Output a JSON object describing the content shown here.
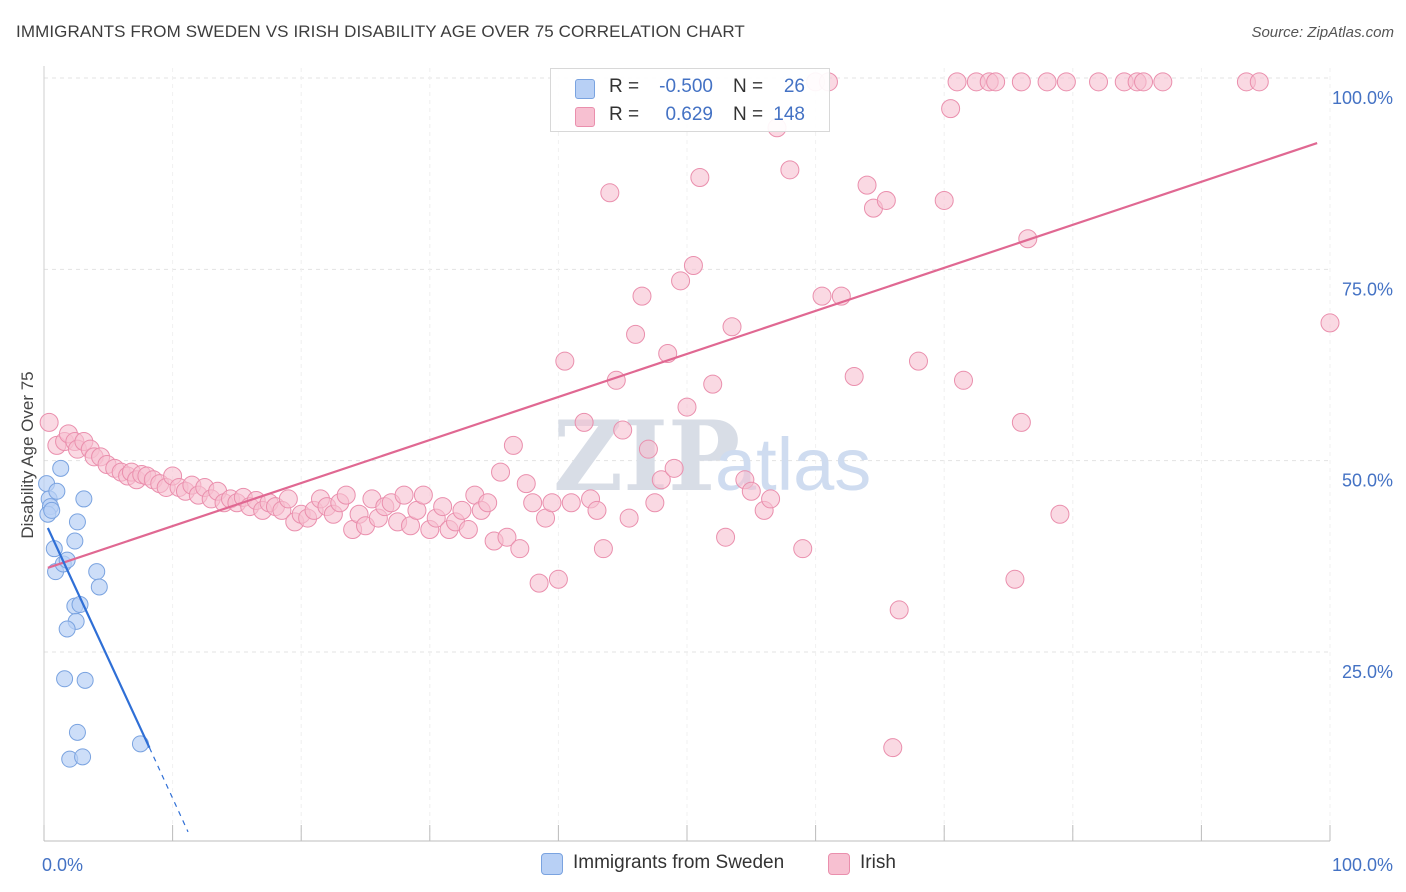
{
  "title": "IMMIGRANTS FROM SWEDEN VS IRISH DISABILITY AGE OVER 75 CORRELATION CHART",
  "source": "Source: ZipAtlas.com",
  "watermark": {
    "zip": "ZIP",
    "atlas": "atlas"
  },
  "colors": {
    "sweden_fill": "#b8d0f5",
    "sweden_stroke": "#7aa3e0",
    "sweden_line": "#2f6fd6",
    "irish_fill": "#f7c0d1",
    "irish_stroke": "#ea8fad",
    "irish_line": "#e06892",
    "tick_text": "#4472c4",
    "grid": "#e3e3e3"
  },
  "legend": {
    "rows": [
      {
        "r_label": "R =",
        "r_value": "-0.500",
        "n_label": "N =",
        "n_value": "26"
      },
      {
        "r_label": "R =",
        "r_value": "0.629",
        "n_label": "N =",
        "n_value": "148"
      }
    ]
  },
  "bottom_legend": [
    "Immigrants from Sweden",
    "Irish"
  ],
  "chart_data": {
    "type": "scatter",
    "title": "IMMIGRANTS FROM SWEDEN VS IRISH DISABILITY AGE OVER 75 CORRELATION CHART",
    "xlabel": "",
    "ylabel": "Disability Age Over 75",
    "xlim": [
      0,
      100
    ],
    "ylim": [
      0,
      102
    ],
    "x_tick_labels": [
      "0.0%",
      "100.0%"
    ],
    "y_ticks": [
      25,
      50,
      75,
      100
    ],
    "y_tick_labels": [
      "25.0%",
      "50.0%",
      "75.0%",
      "100.0%"
    ],
    "grid": true,
    "legend_position": "top-center",
    "series": [
      {
        "name": "Immigrants from Sweden",
        "r": -0.5,
        "n": 26,
        "trend": {
          "x0": 0.3,
          "y0": 41.2,
          "x1": 8.2,
          "y1": 12.5,
          "dash_to_x": 11.2,
          "dash_to_y": 1.5
        },
        "points": [
          [
            0.2,
            47.0
          ],
          [
            0.4,
            45.0
          ],
          [
            0.5,
            44.0
          ],
          [
            0.3,
            43.0
          ],
          [
            0.6,
            43.5
          ],
          [
            1.0,
            46.0
          ],
          [
            1.3,
            49.0
          ],
          [
            0.8,
            38.5
          ],
          [
            0.9,
            35.5
          ],
          [
            1.5,
            36.5
          ],
          [
            1.8,
            37.0
          ],
          [
            2.4,
            39.5
          ],
          [
            2.6,
            42.0
          ],
          [
            3.1,
            45.0
          ],
          [
            2.4,
            31.0
          ],
          [
            2.8,
            31.2
          ],
          [
            2.5,
            29.0
          ],
          [
            1.8,
            28.0
          ],
          [
            4.1,
            35.5
          ],
          [
            4.3,
            33.5
          ],
          [
            1.6,
            21.5
          ],
          [
            3.2,
            21.3
          ],
          [
            2.6,
            14.5
          ],
          [
            2.0,
            11.0
          ],
          [
            3.0,
            11.3
          ],
          [
            7.5,
            13.0
          ]
        ]
      },
      {
        "name": "Irish",
        "r": 0.629,
        "n": 148,
        "trend": {
          "x0": 0.3,
          "y0": 36.0,
          "x1": 99.0,
          "y1": 91.5
        },
        "points": [
          [
            0.4,
            55.0
          ],
          [
            1.0,
            52.0
          ],
          [
            1.6,
            52.5
          ],
          [
            1.9,
            53.5
          ],
          [
            2.4,
            52.5
          ],
          [
            2.6,
            51.5
          ],
          [
            3.1,
            52.5
          ],
          [
            3.6,
            51.5
          ],
          [
            3.9,
            50.5
          ],
          [
            4.4,
            50.5
          ],
          [
            4.9,
            49.5
          ],
          [
            5.5,
            49.0
          ],
          [
            6.0,
            48.5
          ],
          [
            6.5,
            48.0
          ],
          [
            6.8,
            48.5
          ],
          [
            7.2,
            47.5
          ],
          [
            7.6,
            48.2
          ],
          [
            8.0,
            48.0
          ],
          [
            8.5,
            47.5
          ],
          [
            9.0,
            47.0
          ],
          [
            9.5,
            46.5
          ],
          [
            10.0,
            48.0
          ],
          [
            10.5,
            46.5
          ],
          [
            11.0,
            46.0
          ],
          [
            11.5,
            46.8
          ],
          [
            12.0,
            45.5
          ],
          [
            12.5,
            46.5
          ],
          [
            13.0,
            45.0
          ],
          [
            13.5,
            46.0
          ],
          [
            14.0,
            44.5
          ],
          [
            14.5,
            45.0
          ],
          [
            15.0,
            44.5
          ],
          [
            15.5,
            45.2
          ],
          [
            16.0,
            44.0
          ],
          [
            16.5,
            44.8
          ],
          [
            17.0,
            43.5
          ],
          [
            17.5,
            44.5
          ],
          [
            18.0,
            44.0
          ],
          [
            18.5,
            43.5
          ],
          [
            19.0,
            45.0
          ],
          [
            19.5,
            42.0
          ],
          [
            20.0,
            43.0
          ],
          [
            20.5,
            42.5
          ],
          [
            21.0,
            43.5
          ],
          [
            21.5,
            45.0
          ],
          [
            22.0,
            44.0
          ],
          [
            22.5,
            43.0
          ],
          [
            23.0,
            44.5
          ],
          [
            23.5,
            45.5
          ],
          [
            24.0,
            41.0
          ],
          [
            24.5,
            43.0
          ],
          [
            25.0,
            41.5
          ],
          [
            25.5,
            45.0
          ],
          [
            26.0,
            42.5
          ],
          [
            26.5,
            44.0
          ],
          [
            27.0,
            44.5
          ],
          [
            27.5,
            42.0
          ],
          [
            28.0,
            45.5
          ],
          [
            28.5,
            41.5
          ],
          [
            29.0,
            43.5
          ],
          [
            29.5,
            45.5
          ],
          [
            30.0,
            41.0
          ],
          [
            30.5,
            42.5
          ],
          [
            31.0,
            44.0
          ],
          [
            31.5,
            41.0
          ],
          [
            32.0,
            42.0
          ],
          [
            32.5,
            43.5
          ],
          [
            33.0,
            41.0
          ],
          [
            33.5,
            45.5
          ],
          [
            34.0,
            43.5
          ],
          [
            34.5,
            44.5
          ],
          [
            35.0,
            39.5
          ],
          [
            35.5,
            48.5
          ],
          [
            36.0,
            40.0
          ],
          [
            36.5,
            52.0
          ],
          [
            37.0,
            38.5
          ],
          [
            37.5,
            47.0
          ],
          [
            38.0,
            44.5
          ],
          [
            38.5,
            34.0
          ],
          [
            39.0,
            42.5
          ],
          [
            39.5,
            44.5
          ],
          [
            40.0,
            34.5
          ],
          [
            40.5,
            63.0
          ],
          [
            41.0,
            44.5
          ],
          [
            42.0,
            55.0
          ],
          [
            42.5,
            45.0
          ],
          [
            43.0,
            43.5
          ],
          [
            43.5,
            38.5
          ],
          [
            44.0,
            85.0
          ],
          [
            44.5,
            60.5
          ],
          [
            45.0,
            54.0
          ],
          [
            45.5,
            42.5
          ],
          [
            46.0,
            66.5
          ],
          [
            46.5,
            71.5
          ],
          [
            47.0,
            51.5
          ],
          [
            47.5,
            44.5
          ],
          [
            48.0,
            47.5
          ],
          [
            48.5,
            64.0
          ],
          [
            49.0,
            49.0
          ],
          [
            49.5,
            73.5
          ],
          [
            50.0,
            57.0
          ],
          [
            50.5,
            75.5
          ],
          [
            51.0,
            87.0
          ],
          [
            52.0,
            60.0
          ],
          [
            53.0,
            40.0
          ],
          [
            53.5,
            67.5
          ],
          [
            54.5,
            47.5
          ],
          [
            55.0,
            46.0
          ],
          [
            56.0,
            43.5
          ],
          [
            56.5,
            45.0
          ],
          [
            57.0,
            93.5
          ],
          [
            58.0,
            88.0
          ],
          [
            59.0,
            38.5
          ],
          [
            60.0,
            99.5
          ],
          [
            60.5,
            71.5
          ],
          [
            61.0,
            99.5
          ],
          [
            62.0,
            71.5
          ],
          [
            63.0,
            61.0
          ],
          [
            64.0,
            86.0
          ],
          [
            64.5,
            83.0
          ],
          [
            65.5,
            84.0
          ],
          [
            66.5,
            30.5
          ],
          [
            66.0,
            12.5
          ],
          [
            68.0,
            63.0
          ],
          [
            70.0,
            84.0
          ],
          [
            70.5,
            96.0
          ],
          [
            71.5,
            60.5
          ],
          [
            72.5,
            99.5
          ],
          [
            73.5,
            99.5
          ],
          [
            74.0,
            99.5
          ],
          [
            75.5,
            34.5
          ],
          [
            76.0,
            55.0
          ],
          [
            76.5,
            79.0
          ],
          [
            76.0,
            99.5
          ],
          [
            78.0,
            99.5
          ],
          [
            79.0,
            43.0
          ],
          [
            82.0,
            99.5
          ],
          [
            84.0,
            99.5
          ],
          [
            85.0,
            99.5
          ],
          [
            85.5,
            99.5
          ],
          [
            87.0,
            99.5
          ],
          [
            93.5,
            99.5
          ],
          [
            94.5,
            99.5
          ],
          [
            100.0,
            68.0
          ],
          [
            71.0,
            99.5
          ],
          [
            79.5,
            99.5
          ]
        ]
      }
    ]
  }
}
